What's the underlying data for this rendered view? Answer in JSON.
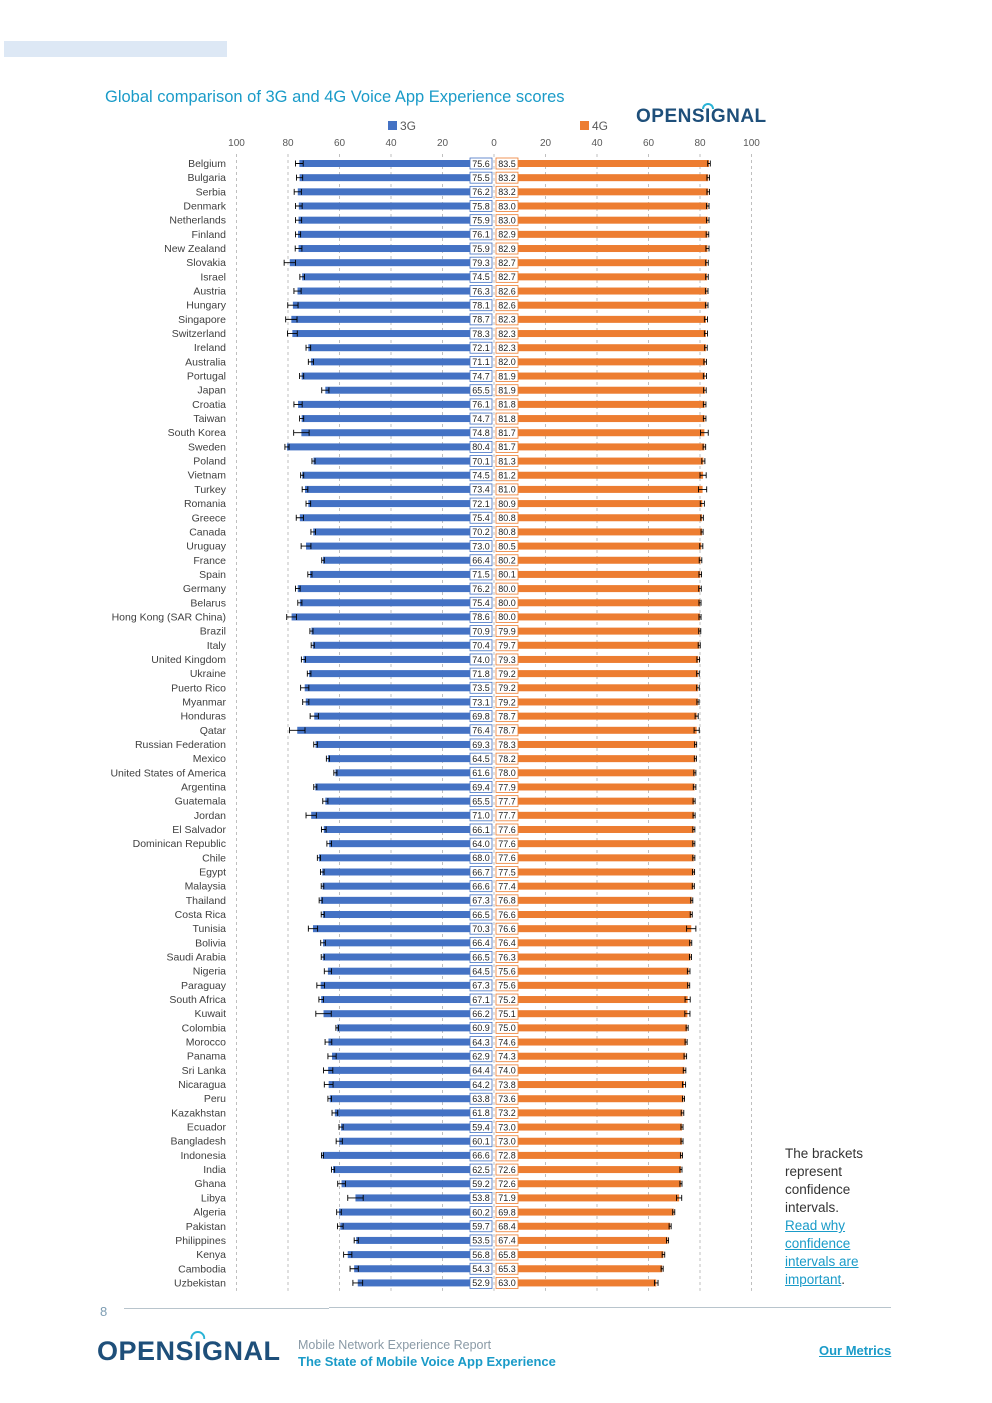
{
  "header": {
    "title": "Global comparison of 3G and 4G Voice App Experience scores"
  },
  "logo": {
    "text": "OPENSIGNAL"
  },
  "chart_data": {
    "type": "bar",
    "title": "Global comparison of 3G and 4G Voice App Experience scores",
    "layout": "back-to-back horizontal bars with confidence interval brackets",
    "series_names": [
      "3G",
      "4G"
    ],
    "colors": {
      "3G": "#4472c4",
      "4G": "#ed7d31",
      "grid": "#b0b0b0"
    },
    "axis_ticks_left": [
      "100",
      "80",
      "60",
      "40",
      "20",
      "0"
    ],
    "axis_ticks_right": [
      "20",
      "40",
      "60",
      "80",
      "100"
    ],
    "xlim": [
      0,
      100
    ],
    "countries": [
      "Belgium",
      "Bulgaria",
      "Serbia",
      "Denmark",
      "Netherlands",
      "Finland",
      "New Zealand",
      "Slovakia",
      "Israel",
      "Austria",
      "Hungary",
      "Singapore",
      "Switzerland",
      "Ireland",
      "Australia",
      "Portugal",
      "Japan",
      "Croatia",
      "Taiwan",
      "South Korea",
      "Sweden",
      "Poland",
      "Vietnam",
      "Turkey",
      "Romania",
      "Greece",
      "Canada",
      "Uruguay",
      "France",
      "Spain",
      "Germany",
      "Belarus",
      "Hong Kong (SAR China)",
      "Brazil",
      "Italy",
      "United Kingdom",
      "Ukraine",
      "Puerto Rico",
      "Myanmar",
      "Honduras",
      "Qatar",
      "Russian Federation",
      "Mexico",
      "United States of America",
      "Argentina",
      "Guatemala",
      "Jordan",
      "El Salvador",
      "Dominican Republic",
      "Chile",
      "Egypt",
      "Malaysia",
      "Thailand",
      "Costa Rica",
      "Tunisia",
      "Bolivia",
      "Saudi Arabia",
      "Nigeria",
      "Paraguay",
      "South Africa",
      "Kuwait",
      "Colombia",
      "Morocco",
      "Panama",
      "Sri Lanka",
      "Nicaragua",
      "Peru",
      "Kazakhstan",
      "Ecuador",
      "Bangladesh",
      "Indonesia",
      "India",
      "Ghana",
      "Libya",
      "Algeria",
      "Pakistan",
      "Philippines",
      "Kenya",
      "Cambodia",
      "Uzbekistan"
    ],
    "values_3g": [
      "75.6",
      "75.5",
      "76.2",
      "75.8",
      "75.9",
      "76.1",
      "75.9",
      "79.3",
      "74.5",
      "76.3",
      "78.1",
      "78.7",
      "78.3",
      "72.1",
      "71.1",
      "74.7",
      "65.5",
      "76.1",
      "74.7",
      "74.8",
      "80.4",
      "70.1",
      "74.5",
      "73.4",
      "72.1",
      "75.4",
      "70.2",
      "73.0",
      "66.4",
      "71.5",
      "76.2",
      "75.4",
      "78.6",
      "70.9",
      "70.4",
      "74.0",
      "71.8",
      "73.5",
      "73.1",
      "69.8",
      "76.4",
      "69.3",
      "64.5",
      "61.6",
      "69.4",
      "65.5",
      "71.0",
      "66.1",
      "64.0",
      "68.0",
      "66.7",
      "66.6",
      "67.3",
      "66.5",
      "70.3",
      "66.4",
      "66.5",
      "64.5",
      "67.3",
      "67.1",
      "66.2",
      "60.9",
      "64.3",
      "62.9",
      "64.4",
      "64.2",
      "63.8",
      "61.8",
      "59.4",
      "60.1",
      "66.6",
      "62.5",
      "59.2",
      "53.8",
      "60.2",
      "59.7",
      "53.5",
      "56.8",
      "54.3",
      "52.9"
    ],
    "values_4g": [
      "83.5",
      "83.2",
      "83.2",
      "83.0",
      "83.0",
      "82.9",
      "82.9",
      "82.7",
      "82.7",
      "82.6",
      "82.6",
      "82.3",
      "82.3",
      "82.3",
      "82.0",
      "81.9",
      "81.9",
      "81.8",
      "81.8",
      "81.7",
      "81.7",
      "81.3",
      "81.2",
      "81.0",
      "80.9",
      "80.8",
      "80.8",
      "80.5",
      "80.2",
      "80.1",
      "80.0",
      "80.0",
      "80.0",
      "79.9",
      "79.7",
      "79.3",
      "79.2",
      "79.2",
      "79.2",
      "78.7",
      "78.7",
      "78.3",
      "78.2",
      "78.0",
      "77.9",
      "77.7",
      "77.7",
      "77.6",
      "77.6",
      "77.6",
      "77.5",
      "77.4",
      "76.8",
      "76.6",
      "76.6",
      "76.4",
      "76.3",
      "75.6",
      "75.6",
      "75.2",
      "75.1",
      "75.0",
      "74.6",
      "74.3",
      "74.0",
      "73.8",
      "73.6",
      "73.2",
      "73.0",
      "73.0",
      "72.8",
      "72.6",
      "72.6",
      "71.9",
      "69.8",
      "68.4",
      "67.4",
      "65.8",
      "65.3",
      "63.0"
    ],
    "ci_3g": [
      1.5,
      1.2,
      1.4,
      1.3,
      1.2,
      1.0,
      1.3,
      2.2,
      0.9,
      1.4,
      2.0,
      2.2,
      1.9,
      0.9,
      1.0,
      0.8,
      1.4,
      1.6,
      0.8,
      3.0,
      0.8,
      0.6,
      0.6,
      1.1,
      0.9,
      1.4,
      0.9,
      1.9,
      0.5,
      0.8,
      0.9,
      0.8,
      1.9,
      0.6,
      0.6,
      0.8,
      0.7,
      1.6,
      1.2,
      1.6,
      3.0,
      0.7,
      0.6,
      0.6,
      0.6,
      1.0,
      2.0,
      0.9,
      0.9,
      0.6,
      0.7,
      0.5,
      0.6,
      0.6,
      1.8,
      0.9,
      0.6,
      1.4,
      1.5,
      0.9,
      3.0,
      0.5,
      1.3,
      1.6,
      1.8,
      1.7,
      0.7,
      1.1,
      0.8,
      1.2,
      0.4,
      0.6,
      1.5,
      3.0,
      0.9,
      1.1,
      0.8,
      1.6,
      1.6,
      1.9
    ],
    "ci_4g": [
      0.5,
      0.5,
      0.5,
      0.5,
      0.5,
      0.5,
      0.6,
      0.5,
      0.5,
      0.5,
      0.5,
      0.6,
      0.6,
      0.5,
      0.5,
      0.6,
      0.5,
      0.5,
      0.5,
      1.5,
      0.5,
      0.6,
      1.2,
      1.6,
      0.8,
      0.5,
      0.4,
      0.6,
      0.5,
      0.5,
      0.5,
      0.4,
      0.4,
      0.4,
      0.4,
      0.5,
      0.5,
      0.5,
      0.4,
      0.6,
      1.0,
      0.4,
      0.4,
      0.4,
      0.5,
      0.4,
      0.4,
      0.4,
      0.4,
      0.4,
      0.4,
      0.4,
      0.4,
      0.4,
      1.8,
      0.4,
      0.4,
      0.5,
      0.4,
      1.0,
      1.0,
      0.4,
      0.4,
      0.5,
      0.5,
      0.6,
      0.4,
      0.5,
      0.4,
      0.4,
      0.4,
      0.4,
      0.4,
      1.0,
      0.4,
      0.4,
      0.4,
      0.5,
      0.4,
      0.7
    ]
  },
  "side_note": {
    "text": "The brackets represent confidence intervals.",
    "link": "Read why confidence intervals are important",
    "trail": "."
  },
  "footer": {
    "page_number": "8",
    "subtitle": "Mobile Network Experience Report",
    "title": "The State of Mobile Voice App Experience",
    "link": "Our Metrics"
  }
}
